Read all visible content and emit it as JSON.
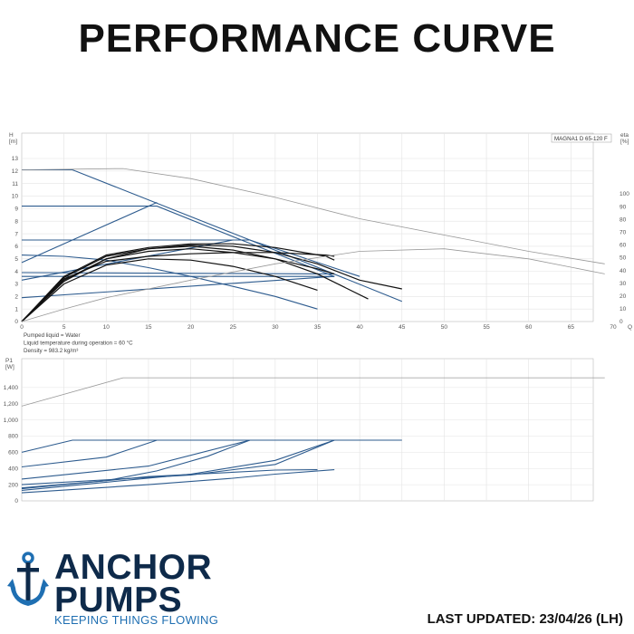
{
  "page": {
    "title": "PERFORMANCE CURVE",
    "last_updated": "LAST UPDATED: 23/04/26 (LH)"
  },
  "brand": {
    "line1": "ANCHOR",
    "line2": "PUMPS",
    "tagline": "KEEPING THINGS FLOWING",
    "colors": {
      "navy": "#0e2a4a",
      "blue": "#1f6fb2"
    }
  },
  "chart_data": [
    {
      "type": "line",
      "model_label": "MAGNA1 D 65-120 F",
      "ylabel": "H",
      "yunit": "[m]",
      "y2label": "eta",
      "y2unit": "[%]",
      "xlabel": "Q [m³/h]",
      "xlim": [
        0,
        70
      ],
      "ylim": [
        0,
        13
      ],
      "y2lim": [
        0,
        100
      ],
      "xticks": [
        0,
        5,
        10,
        15,
        20,
        25,
        30,
        35,
        40,
        45,
        50,
        55,
        60,
        65,
        70
      ],
      "yticks": [
        0,
        1,
        2,
        3,
        4,
        5,
        6,
        7,
        8,
        9,
        10,
        11,
        12,
        13
      ],
      "y2ticks": [
        0,
        10,
        20,
        30,
        40,
        50,
        60,
        70,
        80,
        90,
        100
      ],
      "grid": true,
      "notes": [
        "Pumped liquid = Water",
        "Liquid temperature during operation = 60 °C",
        "Density = 983.2 kg/m³"
      ],
      "colors": {
        "qh": "#2d5b8e",
        "eta": "#111111",
        "system": "#999999"
      },
      "series": [
        {
          "kind": "qh",
          "points": [
            [
              0,
              12.1
            ],
            [
              6,
              12.1
            ],
            [
              27,
              6.5
            ],
            [
              45,
              1.6
            ]
          ]
        },
        {
          "kind": "qh",
          "points": [
            [
              0,
              9.2
            ],
            [
              16,
              9.2
            ],
            [
              26,
              6.5
            ],
            [
              37,
              3.6
            ]
          ]
        },
        {
          "kind": "qh",
          "points": [
            [
              0,
              6.5
            ],
            [
              27,
              6.5
            ],
            [
              40,
              3.6
            ]
          ]
        },
        {
          "kind": "qh",
          "points": [
            [
              0,
              5.3
            ],
            [
              5,
              5.2
            ],
            [
              10,
              4.9
            ],
            [
              15,
              4.3
            ],
            [
              20,
              3.6
            ],
            [
              25,
              2.8
            ],
            [
              30,
              2.0
            ],
            [
              35,
              1.0
            ]
          ]
        },
        {
          "kind": "qh",
          "points": [
            [
              0,
              3.9
            ],
            [
              37,
              3.8
            ]
          ]
        },
        {
          "kind": "qh",
          "points": [
            [
              0,
              3.6
            ],
            [
              37,
              3.6
            ]
          ]
        },
        {
          "kind": "qh",
          "points": [
            [
              0,
              1.9
            ],
            [
              37,
              3.6
            ]
          ]
        },
        {
          "kind": "qh",
          "points": [
            [
              0,
              3.3
            ],
            [
              25,
              6.5
            ]
          ]
        },
        {
          "kind": "qh",
          "points": [
            [
              0,
              4.7
            ],
            [
              16,
              9.5
            ]
          ]
        },
        {
          "kind": "eta",
          "points": [
            [
              0,
              0
            ],
            [
              5,
              3.2
            ],
            [
              10,
              5.0
            ],
            [
              15,
              5.8
            ],
            [
              20,
              6.0
            ],
            [
              25,
              5.7
            ],
            [
              30,
              5.0
            ],
            [
              35,
              3.8
            ],
            [
              41,
              1.8
            ]
          ]
        },
        {
          "kind": "eta",
          "points": [
            [
              0,
              0
            ],
            [
              5,
              3.5
            ],
            [
              10,
              5.2
            ],
            [
              15,
              5.8
            ],
            [
              20,
              6.1
            ],
            [
              25,
              6.0
            ],
            [
              30,
              5.5
            ],
            [
              35,
              4.6
            ],
            [
              40,
              3.3
            ],
            [
              45,
              2.6
            ]
          ]
        },
        {
          "kind": "eta",
          "points": [
            [
              0,
              0
            ],
            [
              5,
              3.0
            ],
            [
              10,
              4.5
            ],
            [
              15,
              5.0
            ],
            [
              20,
              4.9
            ],
            [
              25,
              4.4
            ],
            [
              30,
              3.6
            ],
            [
              35,
              2.5
            ]
          ]
        },
        {
          "kind": "eta",
          "points": [
            [
              0,
              0
            ],
            [
              5,
              3.3
            ],
            [
              10,
              5.0
            ],
            [
              15,
              5.6
            ],
            [
              20,
              5.8
            ],
            [
              25,
              5.5
            ],
            [
              30,
              5.0
            ],
            [
              35,
              4.2
            ],
            [
              37,
              3.8
            ]
          ]
        },
        {
          "kind": "eta",
          "points": [
            [
              0,
              0
            ],
            [
              5,
              3.6
            ],
            [
              10,
              5.3
            ],
            [
              15,
              5.9
            ],
            [
              20,
              6.2
            ],
            [
              25,
              6.2
            ],
            [
              30,
              5.9
            ],
            [
              36,
              5.2
            ],
            [
              37,
              4.9
            ]
          ]
        },
        {
          "kind": "eta",
          "points": [
            [
              0,
              0
            ],
            [
              5,
              3.4
            ],
            [
              10,
              4.8
            ],
            [
              15,
              5.2
            ],
            [
              20,
              5.4
            ],
            [
              25,
              5.5
            ],
            [
              30,
              5.5
            ],
            [
              36,
              5.3
            ],
            [
              37,
              5.2
            ]
          ]
        },
        {
          "kind": "system",
          "points": [
            [
              0,
              12.1
            ],
            [
              12,
              12.2
            ],
            [
              20,
              11.4
            ],
            [
              30,
              9.9
            ],
            [
              40,
              8.2
            ],
            [
              50,
              6.9
            ],
            [
              60,
              5.6
            ],
            [
              69,
              4.6
            ]
          ]
        },
        {
          "kind": "system",
          "points": [
            [
              0,
              0
            ],
            [
              5,
              1.0
            ],
            [
              10,
              1.9
            ],
            [
              20,
              3.3
            ],
            [
              30,
              4.6
            ],
            [
              40,
              5.6
            ],
            [
              50,
              5.8
            ],
            [
              60,
              5.0
            ],
            [
              69,
              3.8
            ]
          ]
        }
      ]
    },
    {
      "type": "line",
      "ylabel": "P1",
      "yunit": "[W]",
      "xlim": [
        0,
        70
      ],
      "ylim": [
        0,
        1600
      ],
      "yticks": [
        0,
        200,
        400,
        600,
        800,
        1000,
        1200,
        1400
      ],
      "ytick_labels": [
        "0",
        "200",
        "400",
        "600",
        "800",
        "1,000",
        "1,200",
        "1,400"
      ],
      "grid": true,
      "colors": {
        "power": "#2d5b8e",
        "system": "#999999"
      },
      "series": [
        {
          "kind": "power",
          "points": [
            [
              0,
              600
            ],
            [
              6,
              750
            ],
            [
              45,
              750
            ]
          ]
        },
        {
          "kind": "power",
          "points": [
            [
              0,
              420
            ],
            [
              10,
              540
            ],
            [
              16,
              750
            ],
            [
              30,
              750
            ]
          ]
        },
        {
          "kind": "power",
          "points": [
            [
              0,
              270
            ],
            [
              15,
              430
            ],
            [
              27,
              750
            ],
            [
              37,
              750
            ]
          ]
        },
        {
          "kind": "power",
          "points": [
            [
              0,
              150
            ],
            [
              15,
              300
            ],
            [
              30,
              380
            ],
            [
              35,
              385
            ]
          ]
        },
        {
          "kind": "power",
          "points": [
            [
              0,
              100
            ],
            [
              15,
              200
            ],
            [
              25,
              280
            ],
            [
              30,
              330
            ],
            [
              37,
              385
            ]
          ]
        },
        {
          "kind": "power",
          "points": [
            [
              0,
              200
            ],
            [
              20,
              320
            ],
            [
              30,
              450
            ],
            [
              37,
              750
            ]
          ]
        },
        {
          "kind": "power",
          "points": [
            [
              0,
              130
            ],
            [
              10,
              230
            ],
            [
              20,
              330
            ],
            [
              30,
              500
            ],
            [
              37,
              750
            ]
          ]
        },
        {
          "kind": "power",
          "points": [
            [
              0,
              160
            ],
            [
              10,
              250
            ],
            [
              16,
              370
            ],
            [
              22,
              550
            ],
            [
              27,
              750
            ]
          ]
        },
        {
          "kind": "system",
          "points": [
            [
              0,
              1170
            ],
            [
              12,
              1520
            ],
            [
              69,
              1520
            ]
          ]
        }
      ]
    }
  ]
}
